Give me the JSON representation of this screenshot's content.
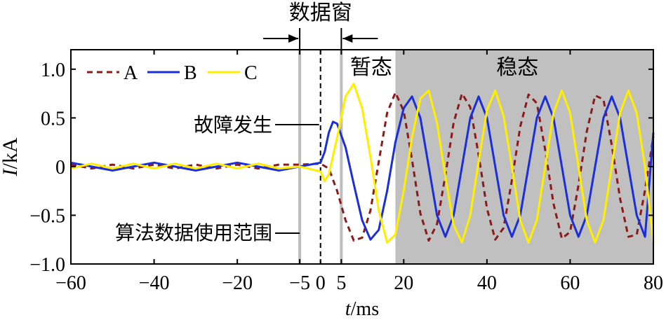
{
  "chart_data": {
    "type": "line",
    "xlabel_var": "t",
    "xlabel_unit": "/ms",
    "ylabel_var": "I",
    "ylabel_unit": "/kA",
    "xlim": [
      -60,
      80
    ],
    "ylim": [
      -1.0,
      1.2
    ],
    "x_ticks": [
      -60,
      -40,
      -20,
      -5,
      0,
      5,
      20,
      40,
      60,
      80
    ],
    "x_tick_labels": [
      "−60",
      "−40",
      "−20",
      "−5",
      "0",
      "5",
      "20",
      "40",
      "60",
      "80"
    ],
    "y_ticks": [
      1.0,
      0.5,
      0,
      -0.5,
      -1.0
    ],
    "y_tick_labels": [
      "1.0",
      "0.5",
      "0",
      "−0.5",
      "−1.0"
    ],
    "grid": false,
    "legend_position": "top-left",
    "series": [
      {
        "name": "A",
        "color": "#8b1a1a",
        "dash": "dashed",
        "points": [
          [
            -60,
            0.02
          ],
          [
            -55,
            -0.02
          ],
          [
            -50,
            0.02
          ],
          [
            -45,
            -0.02
          ],
          [
            -40,
            0.02
          ],
          [
            -35,
            -0.02
          ],
          [
            -30,
            0.02
          ],
          [
            -25,
            -0.02
          ],
          [
            -20,
            0.02
          ],
          [
            -15,
            -0.02
          ],
          [
            -10,
            0.02
          ],
          [
            -5,
            0.02
          ],
          [
            0,
            0.03
          ],
          [
            2,
            -0.02
          ],
          [
            4,
            -0.25
          ],
          [
            6,
            -0.55
          ],
          [
            8,
            -0.76
          ],
          [
            10,
            -0.73
          ],
          [
            12,
            -0.45
          ],
          [
            14,
            0.05
          ],
          [
            16,
            0.55
          ],
          [
            18,
            0.76
          ],
          [
            20,
            0.57
          ],
          [
            22,
            0.07
          ],
          [
            24,
            -0.48
          ],
          [
            26,
            -0.76
          ],
          [
            28,
            -0.59
          ],
          [
            30,
            -0.09
          ],
          [
            32,
            0.45
          ],
          [
            34,
            0.75
          ],
          [
            36,
            0.61
          ],
          [
            38,
            0.12
          ],
          [
            40,
            -0.43
          ],
          [
            42,
            -0.75
          ],
          [
            44,
            -0.63
          ],
          [
            46,
            -0.14
          ],
          [
            48,
            0.41
          ],
          [
            50,
            0.74
          ],
          [
            52,
            0.65
          ],
          [
            54,
            0.17
          ],
          [
            56,
            -0.38
          ],
          [
            58,
            -0.74
          ],
          [
            60,
            -0.67
          ],
          [
            62,
            -0.19
          ],
          [
            64,
            0.36
          ],
          [
            66,
            0.73
          ],
          [
            68,
            0.69
          ],
          [
            70,
            0.22
          ],
          [
            72,
            -0.33
          ],
          [
            74,
            -0.72
          ],
          [
            76,
            -0.7
          ],
          [
            78,
            -0.24
          ],
          [
            80,
            0.31
          ]
        ]
      },
      {
        "name": "B",
        "color": "#1a2fd8",
        "dash": "solid",
        "points": [
          [
            -60,
            0.04
          ],
          [
            -55,
            0.0
          ],
          [
            -50,
            -0.04
          ],
          [
            -45,
            0.0
          ],
          [
            -40,
            0.04
          ],
          [
            -35,
            0.0
          ],
          [
            -30,
            -0.04
          ],
          [
            -25,
            0.0
          ],
          [
            -20,
            0.04
          ],
          [
            -15,
            0.0
          ],
          [
            -10,
            -0.04
          ],
          [
            -5,
            0.0
          ],
          [
            0,
            0.04
          ],
          [
            1,
            0.15
          ],
          [
            2,
            0.35
          ],
          [
            3,
            0.46
          ],
          [
            4,
            0.44
          ],
          [
            6,
            0.2
          ],
          [
            8,
            -0.18
          ],
          [
            10,
            -0.55
          ],
          [
            12,
            -0.75
          ],
          [
            14,
            -0.65
          ],
          [
            16,
            -0.25
          ],
          [
            18,
            0.25
          ],
          [
            20,
            0.6
          ],
          [
            22,
            0.72
          ],
          [
            24,
            0.5
          ],
          [
            26,
            0.0
          ],
          [
            28,
            -0.5
          ],
          [
            30,
            -0.72
          ],
          [
            32,
            -0.5
          ],
          [
            34,
            0.0
          ],
          [
            36,
            0.5
          ],
          [
            38,
            0.72
          ],
          [
            40,
            0.5
          ],
          [
            42,
            0.0
          ],
          [
            44,
            -0.5
          ],
          [
            46,
            -0.72
          ],
          [
            48,
            -0.5
          ],
          [
            50,
            0.0
          ],
          [
            52,
            0.5
          ],
          [
            54,
            0.72
          ],
          [
            56,
            0.5
          ],
          [
            58,
            0.0
          ],
          [
            60,
            -0.5
          ],
          [
            62,
            -0.72
          ],
          [
            64,
            -0.5
          ],
          [
            66,
            0.0
          ],
          [
            68,
            0.5
          ],
          [
            70,
            0.72
          ],
          [
            72,
            0.5
          ],
          [
            74,
            0.0
          ],
          [
            76,
            -0.5
          ],
          [
            78,
            -0.72
          ],
          [
            80,
            0.35
          ]
        ]
      },
      {
        "name": "C",
        "color": "#ffee00",
        "dash": "solid",
        "points": [
          [
            -60,
            -0.02
          ],
          [
            -55,
            0.03
          ],
          [
            -50,
            -0.02
          ],
          [
            -45,
            0.03
          ],
          [
            -40,
            -0.02
          ],
          [
            -35,
            0.03
          ],
          [
            -30,
            -0.02
          ],
          [
            -25,
            0.03
          ],
          [
            -20,
            -0.02
          ],
          [
            -15,
            0.03
          ],
          [
            -10,
            -0.02
          ],
          [
            -5,
            0.0
          ],
          [
            0,
            -0.05
          ],
          [
            1,
            -0.15
          ],
          [
            2,
            -0.08
          ],
          [
            4,
            0.3
          ],
          [
            6,
            0.72
          ],
          [
            8,
            0.85
          ],
          [
            10,
            0.6
          ],
          [
            12,
            0.1
          ],
          [
            14,
            -0.45
          ],
          [
            16,
            -0.78
          ],
          [
            18,
            -0.7
          ],
          [
            20,
            -0.25
          ],
          [
            22,
            0.3
          ],
          [
            24,
            0.7
          ],
          [
            26,
            0.78
          ],
          [
            28,
            0.45
          ],
          [
            30,
            -0.1
          ],
          [
            32,
            -0.6
          ],
          [
            34,
            -0.78
          ],
          [
            36,
            -0.5
          ],
          [
            38,
            0.05
          ],
          [
            40,
            0.58
          ],
          [
            42,
            0.78
          ],
          [
            44,
            0.52
          ],
          [
            46,
            0.0
          ],
          [
            48,
            -0.55
          ],
          [
            50,
            -0.78
          ],
          [
            52,
            -0.55
          ],
          [
            54,
            0.0
          ],
          [
            56,
            0.55
          ],
          [
            58,
            0.78
          ],
          [
            60,
            0.55
          ],
          [
            62,
            0.0
          ],
          [
            64,
            -0.55
          ],
          [
            66,
            -0.78
          ],
          [
            68,
            -0.55
          ],
          [
            70,
            0.0
          ],
          [
            72,
            0.55
          ],
          [
            74,
            0.78
          ],
          [
            76,
            0.55
          ],
          [
            78,
            0.0
          ],
          [
            80,
            -0.78
          ]
        ]
      }
    ],
    "regions": [
      {
        "label": "稳态",
        "x_start": 18,
        "x_end": 80,
        "fill": "#c0c0c0"
      }
    ],
    "vertical_lines": [
      {
        "x": -5,
        "color": "#bdbdbd",
        "style": "solid"
      },
      {
        "x": 0,
        "color": "#000000",
        "style": "dashed"
      },
      {
        "x": 5,
        "color": "#bdbdbd",
        "style": "solid"
      }
    ],
    "annotations": {
      "data_window": "数据窗",
      "transient": "暂态",
      "steady": "稳态",
      "fault": "故障发生",
      "algorithm_range": "算法数据使用范围"
    }
  }
}
